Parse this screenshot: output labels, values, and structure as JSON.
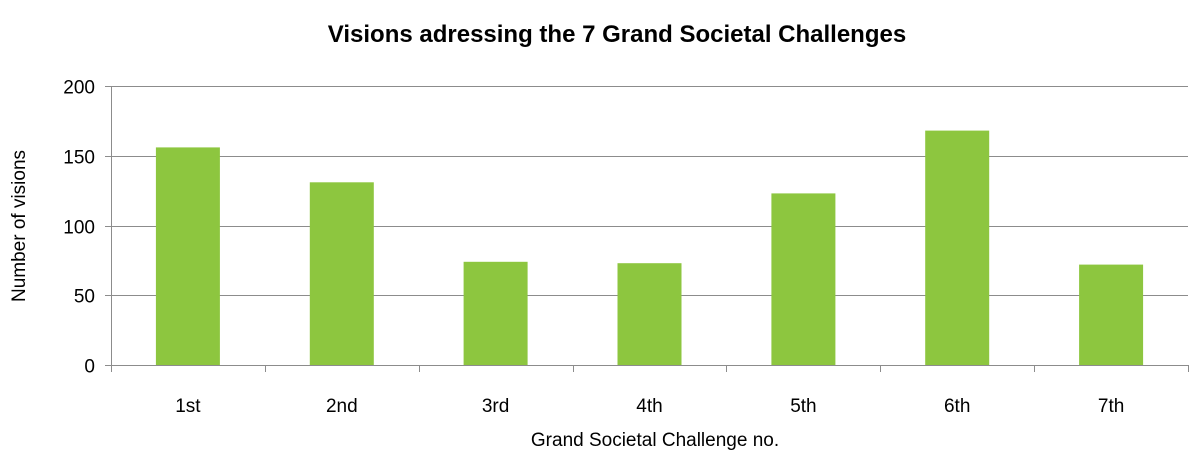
{
  "chart_data": {
    "type": "bar",
    "title": "Visions adressing the 7 Grand Societal Challenges",
    "xlabel": "Grand Societal Challenge no.",
    "ylabel": "Number of visions",
    "categories": [
      "1st",
      "2nd",
      "3rd",
      "4th",
      "5th",
      "6th",
      "7th"
    ],
    "values": [
      156,
      131,
      74,
      73,
      123,
      168,
      72
    ],
    "ylim": [
      0,
      200
    ],
    "yticks": [
      0,
      50,
      100,
      150,
      200
    ],
    "grid": true,
    "legend": "none",
    "bar_color": "#8dc63f",
    "grid_color": "#8c8c8c"
  }
}
